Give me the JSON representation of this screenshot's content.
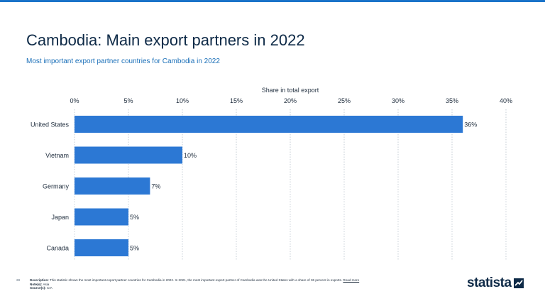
{
  "header": {
    "title": "Cambodia: Main export partners in 2022",
    "subtitle": "Most important export partner countries for Cambodia in 2022"
  },
  "chart_data": {
    "type": "bar",
    "orientation": "horizontal",
    "title": "Cambodia: Main export partners in 2022",
    "xlabel": "Share in total export",
    "ylabel": "",
    "categories": [
      "United States",
      "Vietnam",
      "Germany",
      "Japan",
      "Canada"
    ],
    "values": [
      36,
      10,
      7,
      5,
      5
    ],
    "value_labels": [
      "36%",
      "10%",
      "7%",
      "5%",
      "5%"
    ],
    "xlim": [
      0,
      40
    ],
    "ticks": [
      0,
      5,
      10,
      15,
      20,
      25,
      30,
      35,
      40
    ],
    "tick_labels": [
      "0%",
      "5%",
      "10%",
      "15%",
      "20%",
      "25%",
      "30%",
      "35%",
      "40%"
    ],
    "grid": true,
    "bar_color": "#2c78d4"
  },
  "footer": {
    "page_number": "28",
    "description_label": "Description:",
    "description": "This statistic shows the most important export partner countries for Cambodia in 2022. In 2021, the most important export partner of Cambodia was the United States with a share of 36 percent in exports.",
    "read_more": "Read more",
    "notes_label": "Note(s):",
    "notes": "Asia",
    "sources_label": "Source(s):",
    "sources": "CIA"
  },
  "brand": {
    "logo_text": "statista",
    "color": "#0e2a47"
  }
}
